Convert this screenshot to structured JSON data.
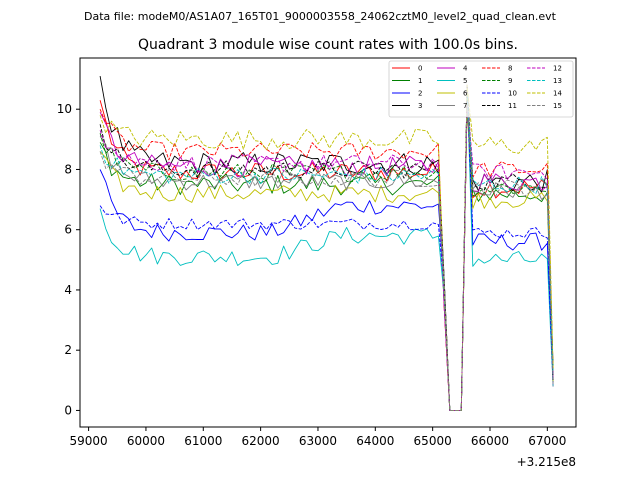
{
  "chart_data": {
    "type": "line",
    "suptitle": "Data file: modeM0/AS1A07_165T01_9000003558_24062cztM0_level2_quad_clean.evt",
    "title": "Quadrant 3 module wise count rates with 100.0s bins.",
    "xlabel": "",
    "ylabel": "",
    "x_offset_label": "+3.215e8",
    "xlim": [
      58850,
      67500
    ],
    "ylim": [
      -0.55,
      11.7
    ],
    "x_ticks": [
      59000,
      60000,
      61000,
      62000,
      63000,
      64000,
      65000,
      66000,
      67000
    ],
    "y_ticks": [
      0,
      2,
      4,
      6,
      8,
      10
    ],
    "x_start": 59200,
    "x_step": 100,
    "num_points": 80,
    "gap_start_index": 61,
    "gap_end_index": 63,
    "legend_position": "upper-right",
    "legend_columns": 4,
    "series": [
      {
        "name": "0",
        "color": "#ff0000",
        "dash": "solid",
        "level": 7.9,
        "start": 10.3,
        "end_level": 7.4,
        "amp": 0.35
      },
      {
        "name": "1",
        "color": "#008000",
        "dash": "solid",
        "level": 7.5,
        "start": 8.9,
        "end_level": 7.2,
        "amp": 0.35
      },
      {
        "name": "2",
        "color": "#0000ff",
        "dash": "solid",
        "level": 5.9,
        "start": 8.0,
        "end_level": 5.6,
        "amp": 0.3,
        "late_level": 6.8
      },
      {
        "name": "3",
        "color": "#000000",
        "dash": "solid",
        "level": 8.2,
        "start": 11.1,
        "end_level": 7.6,
        "amp": 0.4
      },
      {
        "name": "4",
        "color": "#bf00bf",
        "dash": "solid",
        "level": 8.1,
        "start": 9.9,
        "end_level": 7.6,
        "amp": 0.35
      },
      {
        "name": "5",
        "color": "#00bfbf",
        "dash": "solid",
        "level": 5.1,
        "start": 6.7,
        "end_level": 5.0,
        "amp": 0.3,
        "late_level": 5.8
      },
      {
        "name": "6",
        "color": "#bfbf00",
        "dash": "solid",
        "level": 7.2,
        "start": 8.6,
        "end_level": 7.0,
        "amp": 0.3
      },
      {
        "name": "7",
        "color": "#808080",
        "dash": "solid",
        "level": 7.6,
        "start": 9.1,
        "end_level": 7.3,
        "amp": 0.3
      },
      {
        "name": "8",
        "color": "#ff0000",
        "dash": "dashed",
        "level": 8.6,
        "start": 10.0,
        "end_level": 8.0,
        "amp": 0.3
      },
      {
        "name": "9",
        "color": "#008000",
        "dash": "dashed",
        "level": 7.9,
        "start": 9.2,
        "end_level": 7.4,
        "amp": 0.3
      },
      {
        "name": "10",
        "color": "#0000ff",
        "dash": "dashed",
        "level": 6.2,
        "start": 6.8,
        "end_level": 5.9,
        "amp": 0.2
      },
      {
        "name": "11",
        "color": "#000000",
        "dash": "dashed",
        "level": 8.0,
        "start": 9.5,
        "end_level": 7.6,
        "amp": 0.3
      },
      {
        "name": "12",
        "color": "#bf00bf",
        "dash": "dashed",
        "level": 8.2,
        "start": 9.3,
        "end_level": 7.9,
        "amp": 0.3
      },
      {
        "name": "13",
        "color": "#00bfbf",
        "dash": "dashed",
        "level": 7.8,
        "start": 8.8,
        "end_level": 7.5,
        "amp": 0.3
      },
      {
        "name": "14",
        "color": "#bfbf00",
        "dash": "dashed",
        "level": 9.0,
        "start": 9.8,
        "end_level": 8.8,
        "amp": 0.35
      },
      {
        "name": "15",
        "color": "#808080",
        "dash": "dashed",
        "level": 7.7,
        "start": 8.6,
        "end_level": 7.4,
        "amp": 0.3
      }
    ]
  }
}
